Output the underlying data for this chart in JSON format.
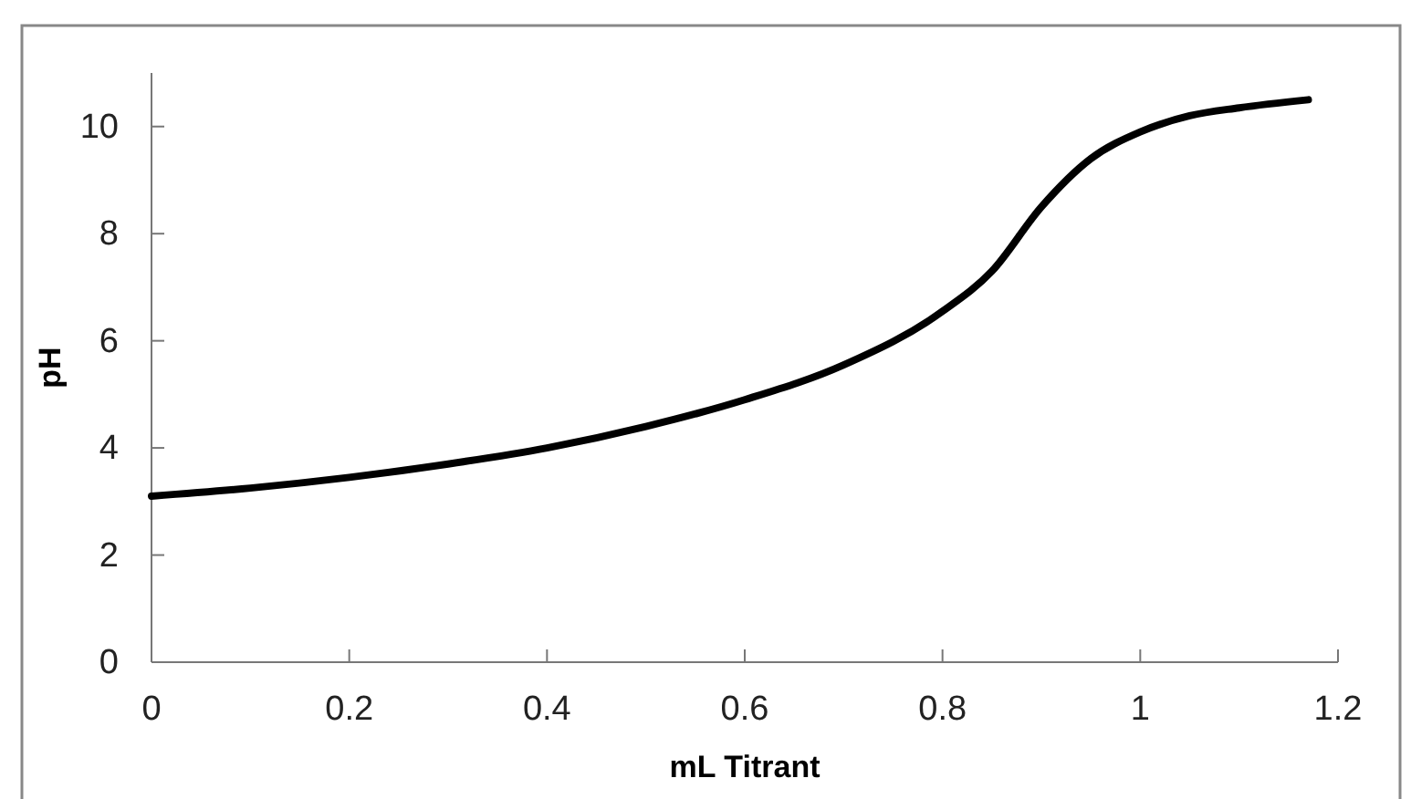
{
  "chart_data": {
    "type": "line",
    "xlabel": "mL Titrant",
    "ylabel": "pH",
    "x": [
      0,
      0.1,
      0.2,
      0.3,
      0.4,
      0.5,
      0.6,
      0.7,
      0.8,
      0.85,
      0.9,
      0.95,
      1.0,
      1.05,
      1.1,
      1.17
    ],
    "series": [
      {
        "color": "#000000",
        "values": [
          3.1,
          3.25,
          3.45,
          3.7,
          4.0,
          4.4,
          4.9,
          5.55,
          6.55,
          7.3,
          8.5,
          9.4,
          9.9,
          10.2,
          10.35,
          10.5
        ]
      }
    ],
    "xlim": [
      0,
      1.2
    ],
    "xticks": [
      0,
      0.2,
      0.4,
      0.6,
      0.8,
      1,
      1.2
    ],
    "ylim": [
      0,
      11
    ],
    "yticks": [
      0,
      2,
      4,
      6,
      8,
      10
    ],
    "grid": false,
    "marker": "none",
    "line_style": "solid"
  }
}
